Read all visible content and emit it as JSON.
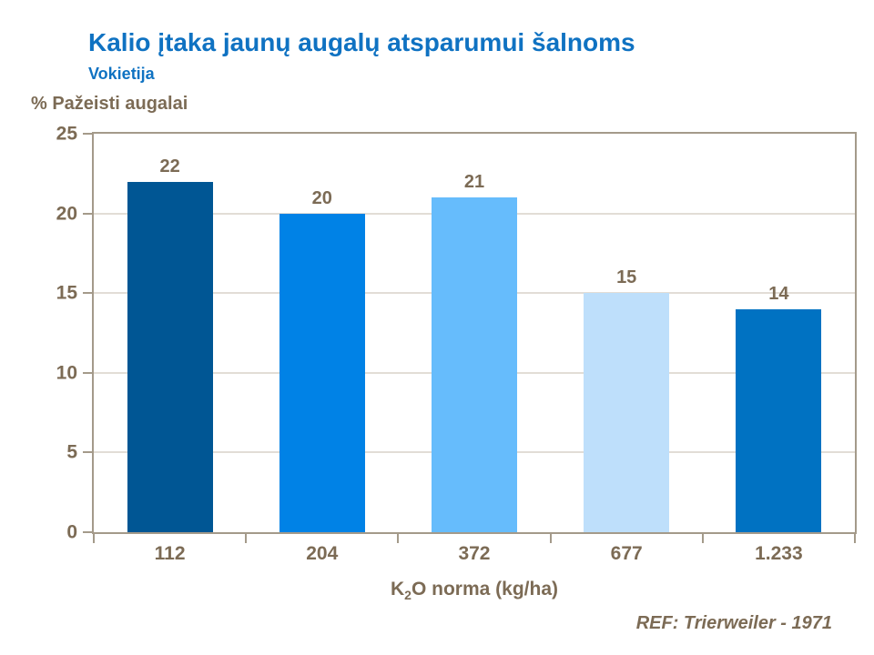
{
  "header": {
    "title": "Kalio įtaka jaunų augalų atsparumui šalnoms",
    "subtitle": "Vokietija"
  },
  "chart_data": {
    "type": "bar",
    "categories": [
      "112",
      "204",
      "372",
      "677",
      "1.233"
    ],
    "values": [
      22,
      20,
      21,
      15,
      14
    ],
    "bar_colors": [
      "#005694",
      "#0082e6",
      "#66bcfc",
      "#bedffb",
      "#0072c2"
    ],
    "title": "Kalio įtaka jaunų augalų atsparumui šalnoms",
    "subtitle": "Vokietija",
    "ylabel": "% Pažeisti augalai",
    "xlabel": "K2O norma (kg/ha)",
    "xlabel_parts": {
      "prefix": "K",
      "subscript": "2",
      "suffix": "O norma (kg/ha)"
    },
    "ylim": [
      0,
      25
    ],
    "yticks": [
      0,
      5,
      10,
      15,
      20,
      25
    ],
    "grid": true,
    "legend_position": "none"
  },
  "footer": {
    "reference": "REF: Trierweiler - 1971"
  },
  "colors": {
    "title_blue": "#0f72c2",
    "label_brown": "#7c6b55",
    "axis_line": "#a49a8a",
    "gridline": "#c4bbad",
    "background": "#ffffff"
  }
}
